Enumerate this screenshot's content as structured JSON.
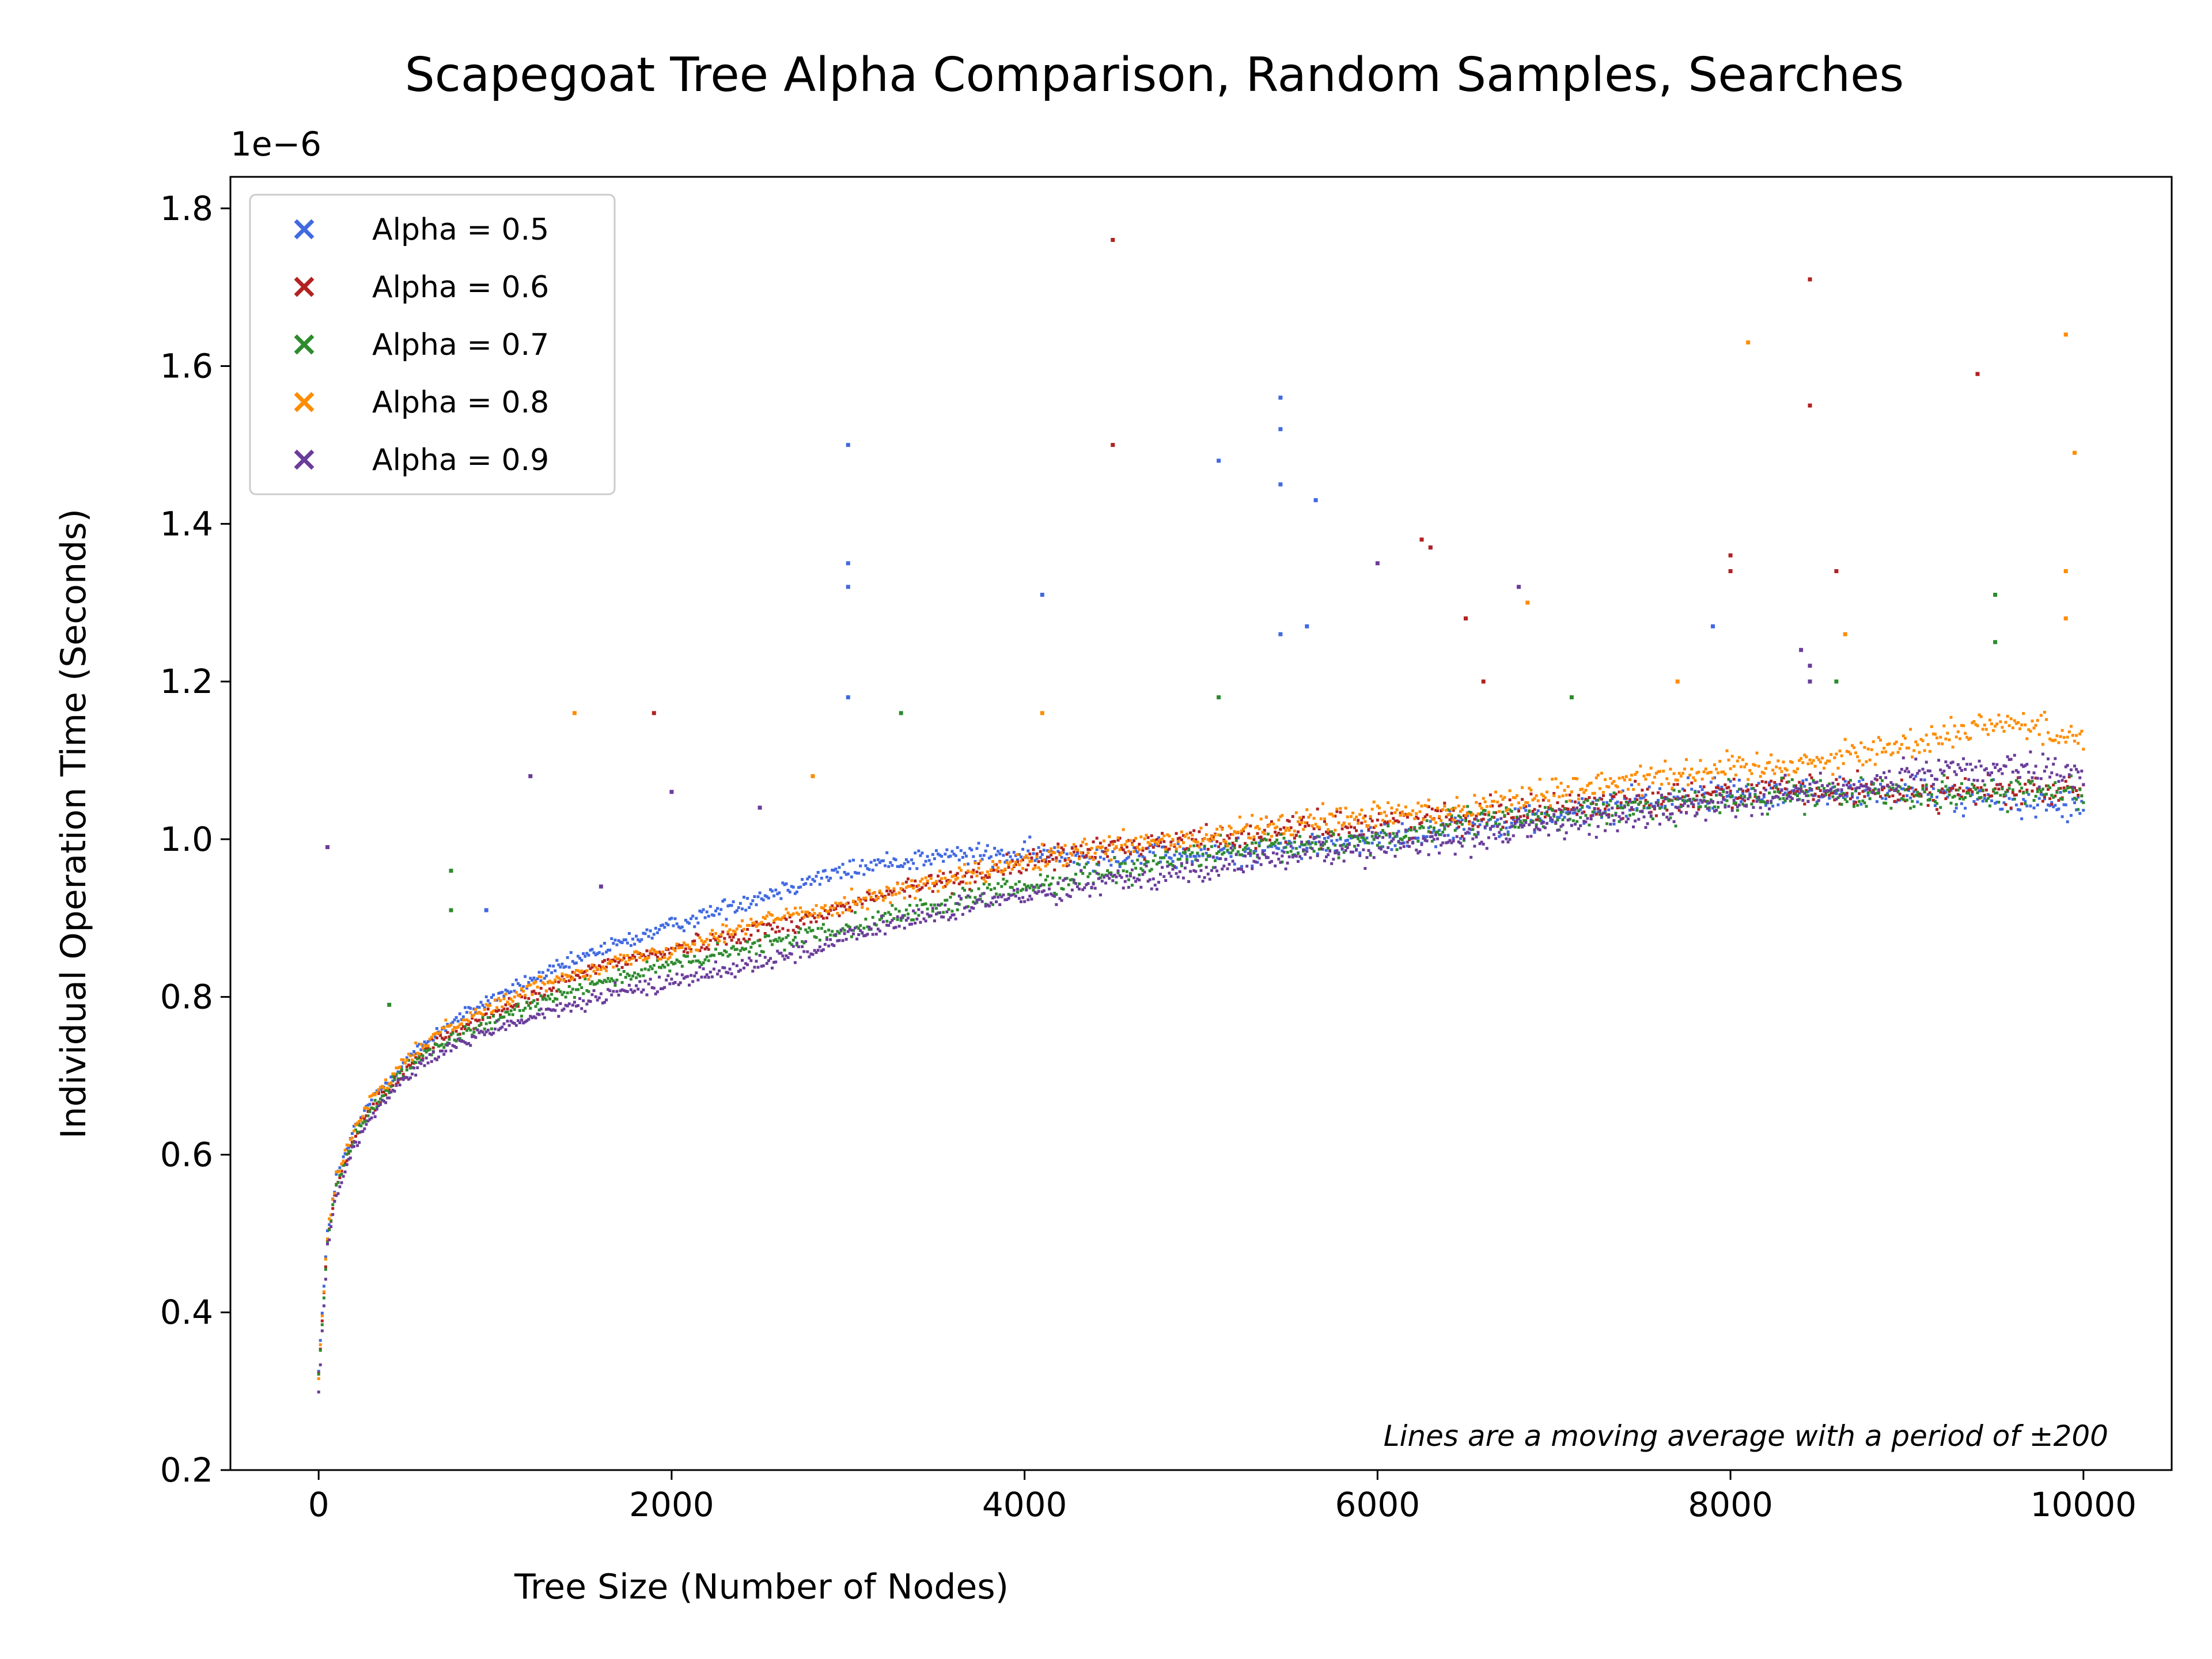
{
  "chart_data": {
    "type": "scatter",
    "title": "Scapegoat Tree Alpha Comparison, Random Samples, Searches",
    "xlabel": "Tree Size (Number of Nodes)",
    "ylabel": "Individual Operation Time (Seconds)",
    "y_offset_label": "1e−6",
    "xlim": [
      -500,
      10500
    ],
    "ylim": [
      0.2,
      1.84
    ],
    "x_ticks": [
      0,
      2000,
      4000,
      6000,
      8000,
      10000
    ],
    "x_tick_labels": [
      "0",
      "2000",
      "4000",
      "6000",
      "8000",
      "10000"
    ],
    "y_ticks": [
      0.2,
      0.4,
      0.6,
      0.8,
      1.0,
      1.2,
      1.4,
      1.6,
      1.8
    ],
    "y_tick_labels": [
      "0.2",
      "0.4",
      "0.6",
      "0.8",
      "1.0",
      "1.2",
      "1.4",
      "1.6",
      "1.8"
    ],
    "grid": false,
    "legend_position": "top-left",
    "annotation": "Lines are a moving average with a period of ±200",
    "series": [
      {
        "name": "Alpha = 0.5",
        "color": "#4169e1",
        "x": [
          0,
          50,
          100,
          200,
          300,
          500,
          700,
          1000,
          1300,
          1600,
          2000,
          2400,
          2800,
          3200,
          3600,
          4000,
          4500,
          5000,
          5500,
          6000,
          6500,
          7000,
          7500,
          8000,
          8500,
          9000,
          9500,
          10000
        ],
        "y": [
          0.33,
          0.5,
          0.57,
          0.63,
          0.67,
          0.72,
          0.76,
          0.8,
          0.83,
          0.86,
          0.89,
          0.92,
          0.95,
          0.97,
          0.98,
          0.98,
          0.98,
          0.98,
          0.99,
          1.0,
          1.02,
          1.03,
          1.05,
          1.06,
          1.06,
          1.06,
          1.05,
          1.04
        ],
        "outliers": [
          [
            3000,
            1.5
          ],
          [
            3000,
            1.35
          ],
          [
            3000,
            1.32
          ],
          [
            3000,
            1.18
          ],
          [
            4100,
            1.31
          ],
          [
            5450,
            1.56
          ],
          [
            5450,
            1.52
          ],
          [
            5100,
            1.48
          ],
          [
            5450,
            1.45
          ],
          [
            5650,
            1.43
          ],
          [
            5450,
            1.26
          ],
          [
            5600,
            1.27
          ],
          [
            6300,
            1.37
          ],
          [
            950,
            0.91
          ],
          [
            7900,
            1.27
          ]
        ]
      },
      {
        "name": "Alpha = 0.6",
        "color": "#b22222",
        "x": [
          0,
          50,
          100,
          200,
          300,
          500,
          700,
          1000,
          1300,
          1600,
          2000,
          2400,
          2800,
          3200,
          3600,
          4000,
          4500,
          5000,
          5500,
          6000,
          6500,
          7000,
          7500,
          8000,
          8500,
          9000,
          9500,
          10000
        ],
        "y": [
          0.32,
          0.49,
          0.56,
          0.62,
          0.66,
          0.71,
          0.75,
          0.78,
          0.81,
          0.84,
          0.86,
          0.88,
          0.9,
          0.93,
          0.95,
          0.97,
          0.99,
          1.0,
          1.01,
          1.02,
          1.03,
          1.04,
          1.05,
          1.06,
          1.06,
          1.06,
          1.06,
          1.06
        ],
        "outliers": [
          [
            4500,
            1.76
          ],
          [
            4500,
            1.5
          ],
          [
            8450,
            1.71
          ],
          [
            8450,
            1.55
          ],
          [
            9400,
            1.59
          ],
          [
            6250,
            1.38
          ],
          [
            6300,
            1.37
          ],
          [
            8000,
            1.36
          ],
          [
            8000,
            1.34
          ],
          [
            8600,
            1.34
          ],
          [
            1900,
            1.16
          ],
          [
            6500,
            1.28
          ],
          [
            6600,
            1.2
          ]
        ]
      },
      {
        "name": "Alpha = 0.7",
        "color": "#2e8b2e",
        "x": [
          0,
          50,
          100,
          200,
          300,
          500,
          700,
          1000,
          1300,
          1600,
          2000,
          2400,
          2800,
          3200,
          3600,
          4000,
          4500,
          5000,
          5500,
          6000,
          6500,
          7000,
          7500,
          8000,
          8500,
          9000,
          9500,
          10000
        ],
        "y": [
          0.32,
          0.49,
          0.56,
          0.62,
          0.66,
          0.71,
          0.74,
          0.77,
          0.8,
          0.82,
          0.84,
          0.86,
          0.88,
          0.9,
          0.92,
          0.94,
          0.96,
          0.98,
          0.99,
          1.0,
          1.02,
          1.03,
          1.04,
          1.05,
          1.06,
          1.06,
          1.06,
          1.06
        ],
        "outliers": [
          [
            750,
            0.96
          ],
          [
            750,
            0.91
          ],
          [
            400,
            0.79
          ],
          [
            3300,
            1.16
          ],
          [
            9500,
            1.31
          ],
          [
            9500,
            1.25
          ],
          [
            5100,
            1.18
          ],
          [
            7100,
            1.18
          ],
          [
            8600,
            1.2
          ]
        ]
      },
      {
        "name": "Alpha = 0.8",
        "color": "#ff8c00",
        "x": [
          0,
          50,
          100,
          200,
          300,
          500,
          700,
          1000,
          1300,
          1600,
          2000,
          2400,
          2800,
          3200,
          3600,
          4000,
          4500,
          5000,
          5500,
          6000,
          6500,
          7000,
          7500,
          8000,
          8500,
          9000,
          9500,
          10000
        ],
        "y": [
          0.32,
          0.5,
          0.57,
          0.63,
          0.67,
          0.72,
          0.76,
          0.79,
          0.82,
          0.84,
          0.86,
          0.89,
          0.91,
          0.93,
          0.95,
          0.97,
          0.99,
          1.0,
          1.02,
          1.03,
          1.04,
          1.06,
          1.08,
          1.09,
          1.1,
          1.12,
          1.15,
          1.13
        ],
        "outliers": [
          [
            8100,
            1.63
          ],
          [
            9900,
            1.64
          ],
          [
            9950,
            1.49
          ],
          [
            9900,
            1.34
          ],
          [
            9900,
            1.28
          ],
          [
            1450,
            1.16
          ],
          [
            2800,
            1.08
          ],
          [
            4100,
            1.16
          ],
          [
            7700,
            1.2
          ],
          [
            6850,
            1.3
          ],
          [
            8650,
            1.26
          ]
        ]
      },
      {
        "name": "Alpha = 0.9",
        "color": "#6a3d9a",
        "x": [
          0,
          50,
          100,
          200,
          300,
          500,
          700,
          1000,
          1300,
          1600,
          2000,
          2400,
          2800,
          3200,
          3600,
          4000,
          4500,
          5000,
          5500,
          6000,
          6500,
          7000,
          7500,
          8000,
          8500,
          9000,
          9500,
          10000
        ],
        "y": [
          0.3,
          0.48,
          0.55,
          0.61,
          0.65,
          0.7,
          0.73,
          0.76,
          0.78,
          0.8,
          0.82,
          0.84,
          0.86,
          0.89,
          0.91,
          0.93,
          0.95,
          0.96,
          0.98,
          0.99,
          1.0,
          1.02,
          1.03,
          1.05,
          1.06,
          1.08,
          1.09,
          1.08
        ],
        "outliers": [
          [
            50,
            0.99
          ],
          [
            1200,
            1.08
          ],
          [
            2000,
            1.06
          ],
          [
            2500,
            1.04
          ],
          [
            6000,
            1.35
          ],
          [
            6800,
            1.32
          ],
          [
            8450,
            1.22
          ],
          [
            8400,
            1.24
          ],
          [
            8450,
            1.2
          ],
          [
            1600,
            0.94
          ]
        ]
      }
    ]
  }
}
